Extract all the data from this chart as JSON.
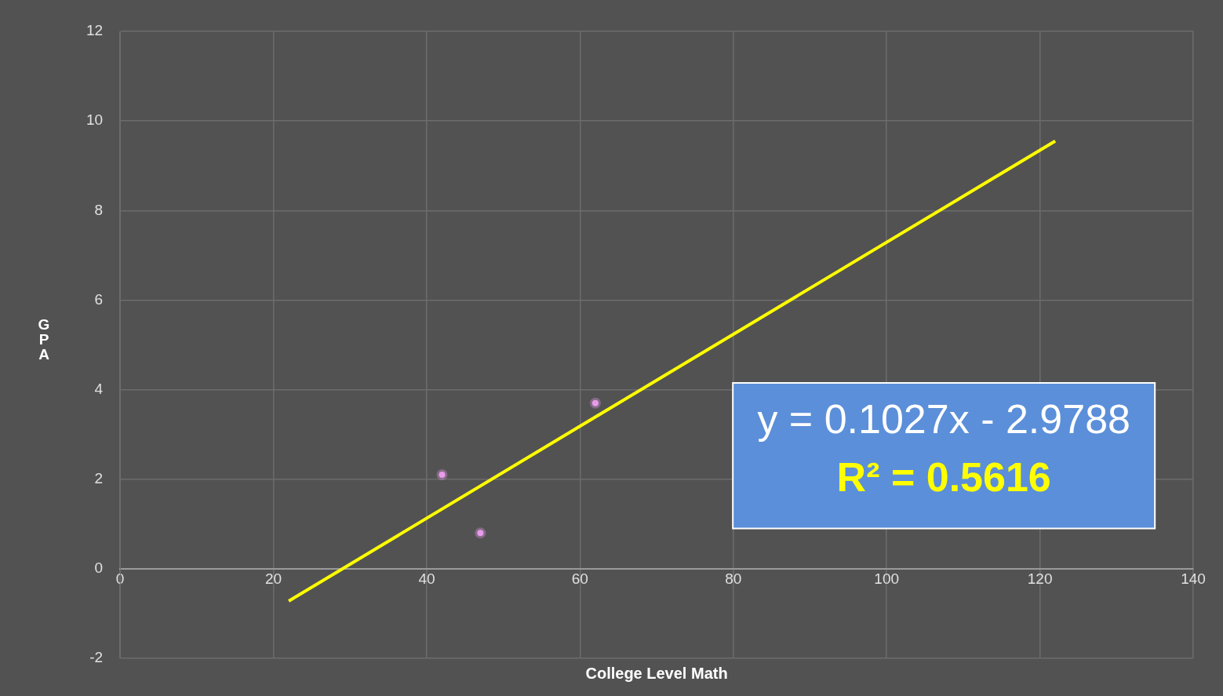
{
  "chart_data": {
    "type": "scatter",
    "xlabel": "College Level Math",
    "ylabel": "GPA",
    "xlim": [
      0,
      140
    ],
    "ylim": [
      -2,
      12
    ],
    "xticks": [
      0,
      20,
      40,
      60,
      80,
      100,
      120,
      140
    ],
    "yticks": [
      -2,
      0,
      2,
      4,
      6,
      8,
      10,
      12
    ],
    "grid": true,
    "legend": false,
    "marker": "circle",
    "annotations": [
      "y = 0.1027x - 2.9788",
      "R² = 0.5616"
    ],
    "series": [
      {
        "color": "#e79be9",
        "x": [
          42,
          47,
          62
        ],
        "values": [
          2.1,
          0.8,
          3.7
        ]
      },
      {
        "type": "line",
        "marker": "none",
        "color": "#ffff00",
        "x": [
          22,
          122
        ],
        "values": [
          -0.72,
          9.55
        ]
      }
    ]
  }
}
